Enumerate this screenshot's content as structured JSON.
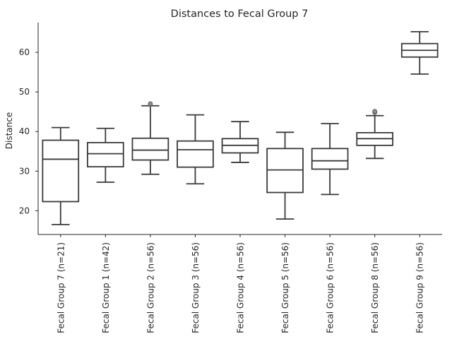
{
  "chart_data": {
    "type": "box",
    "title": "Distances to Fecal Group 7",
    "xlabel": "",
    "ylabel": "Distance",
    "ylim": [
      14,
      67.5
    ],
    "yticks": [
      20,
      30,
      40,
      50,
      60
    ],
    "grid": false,
    "colors": {
      "box_edge": "#3a3a3a",
      "box_fill": "#ffffff",
      "flier": "#8a8a8a",
      "text": "#262626"
    },
    "categories": [
      "Fecal Group 7 (n=21)",
      "Fecal Group 1 (n=42)",
      "Fecal Group 2 (n=56)",
      "Fecal Group 3 (n=56)",
      "Fecal Group 4 (n=56)",
      "Fecal Group 5 (n=56)",
      "Fecal Group 6 (n=56)",
      "Fecal Group 8 (n=56)",
      "Fecal Group 9 (n=56)"
    ],
    "boxes": [
      {
        "whislo": 16.5,
        "q1": 22.3,
        "med": 33.0,
        "q3": 37.8,
        "whishi": 41.0,
        "fliers": []
      },
      {
        "whislo": 27.2,
        "q1": 31.1,
        "med": 34.4,
        "q3": 37.2,
        "whishi": 40.8,
        "fliers": []
      },
      {
        "whislo": 29.2,
        "q1": 32.8,
        "med": 35.3,
        "q3": 38.3,
        "whishi": 46.5,
        "fliers": [
          47.0
        ]
      },
      {
        "whislo": 26.8,
        "q1": 31.0,
        "med": 35.4,
        "q3": 37.6,
        "whishi": 44.2,
        "fliers": []
      },
      {
        "whislo": 32.2,
        "q1": 34.6,
        "med": 36.5,
        "q3": 38.2,
        "whishi": 42.5,
        "fliers": []
      },
      {
        "whislo": 17.9,
        "q1": 24.6,
        "med": 30.3,
        "q3": 35.7,
        "whishi": 39.8,
        "fliers": []
      },
      {
        "whislo": 24.1,
        "q1": 30.5,
        "med": 32.6,
        "q3": 35.7,
        "whishi": 42.0,
        "fliers": []
      },
      {
        "whislo": 33.2,
        "q1": 36.5,
        "med": 38.2,
        "q3": 39.7,
        "whishi": 44.0,
        "fliers": [
          44.8,
          45.1
        ]
      },
      {
        "whislo": 54.5,
        "q1": 58.8,
        "med": 60.5,
        "q3": 62.2,
        "whishi": 65.2,
        "fliers": []
      }
    ]
  }
}
